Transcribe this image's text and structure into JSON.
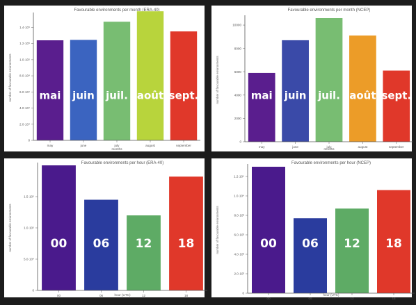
{
  "chart_data": [
    {
      "type": "bar",
      "title": "Favourable environments per month (ERA-40)",
      "xlabel": "months",
      "ylabel": "number of favourable environments",
      "categories": [
        "may",
        "june",
        "july",
        "august",
        "september"
      ],
      "overlay_labels": [
        "mai",
        "juin",
        "juil.",
        "août",
        "sept."
      ],
      "values": [
        124000,
        124500,
        147000,
        160000,
        135000
      ],
      "ylim": [
        0,
        155000
      ],
      "yticks": [
        0,
        20000,
        40000,
        60000,
        80000,
        100000,
        120000,
        140000
      ],
      "ytick_labels": [
        "0",
        "2.0·10⁴",
        "4.0·10⁴",
        "6.0·10⁴",
        "8.0·10⁴",
        "1.0·10⁵",
        "1.2·10⁵",
        "1.4·10⁵"
      ],
      "colors": [
        "#5a1e8e",
        "#3b64c0",
        "#78bd72",
        "#b8d43c",
        "#e0382a"
      ]
    },
    {
      "type": "bar",
      "title": "Favourable environments per month (NCEP)",
      "xlabel": "months",
      "ylabel": "number of favourable environments",
      "categories": [
        "may",
        "june",
        "july",
        "august",
        "september"
      ],
      "overlay_labels": [
        "mai",
        "juin",
        "juil.",
        "août",
        "sept."
      ],
      "values": [
        5900,
        8700,
        10600,
        9100,
        6100
      ],
      "ylim": [
        0,
        10600
      ],
      "yticks": [
        0,
        2000,
        4000,
        6000,
        8000,
        10000
      ],
      "ytick_labels": [
        "0",
        "2000",
        "4000",
        "6000",
        "8000",
        "10000"
      ],
      "colors": [
        "#5a1e8e",
        "#3a4aa8",
        "#78bd72",
        "#ec9c28",
        "#e0382a"
      ]
    },
    {
      "type": "bar",
      "title": "Favourable environments per hour (ERA-40)",
      "xlabel": "hour (UTC)",
      "ylabel": "number of favourable environments",
      "categories": [
        "00",
        "06",
        "12",
        "18"
      ],
      "overlay_labels": [
        "00",
        "06",
        "12",
        "18"
      ],
      "values": [
        200000,
        145000,
        120000,
        182000
      ],
      "ylim": [
        0,
        200000
      ],
      "yticks": [
        0,
        50000,
        100000,
        150000
      ],
      "ytick_labels": [
        "0",
        "5.0·10⁴",
        "1.0·10⁵",
        "1.5·10⁵"
      ],
      "colors": [
        "#4a1a8c",
        "#2a3c9e",
        "#5eab65",
        "#e0382a"
      ]
    },
    {
      "type": "bar",
      "title": "Favourable environments per hour (NCEP)",
      "xlabel": "hour (UTC)",
      "ylabel": "number of favourable environments",
      "categories": [
        "00",
        "06",
        "12",
        "18"
      ],
      "overlay_labels": [
        "00",
        "06",
        "12",
        "18"
      ],
      "values": [
        13000,
        7700,
        8700,
        10600
      ],
      "ylim": [
        0,
        13000
      ],
      "yticks": [
        0,
        2000,
        4000,
        6000,
        8000,
        10000,
        12000
      ],
      "ytick_labels": [
        "0",
        "2.0·10³",
        "4.0·10³",
        "6.0·10³",
        "8.0·10³",
        "1.0·10⁴",
        "1.2·10⁴"
      ],
      "colors": [
        "#4a1a8c",
        "#2a3c9e",
        "#5eab65",
        "#e0382a"
      ]
    }
  ]
}
